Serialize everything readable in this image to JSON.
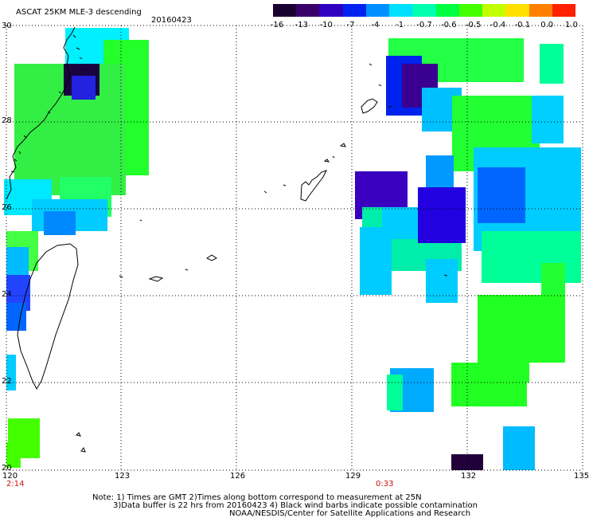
{
  "header": {
    "title": "ASCAT 25KM MLE-3 descending",
    "date": "20160423"
  },
  "colorbar": {
    "labels": [
      "-16",
      "-13",
      "-10",
      "-7",
      "-4",
      "-1",
      "-0.7",
      "-0.6",
      "-0.5",
      "-0.4",
      "-0.1",
      "0.0",
      "1.0"
    ],
    "colors": [
      "#1a0030",
      "#3a006a",
      "#3000c0",
      "#0022f0",
      "#0090ff",
      "#00e0ff",
      "#00ffb0",
      "#00ff40",
      "#44ff00",
      "#c0ff00",
      "#ffe000",
      "#ff8000",
      "#ff2000"
    ]
  },
  "axes": {
    "lon_labels": [
      "120",
      "123",
      "126",
      "129",
      "132",
      "135"
    ],
    "lat_labels": [
      "20",
      "22",
      "24",
      "26",
      "28",
      "30"
    ]
  },
  "times": {
    "left": "2:14",
    "right": "0:33"
  },
  "notes": {
    "line1": "Note: 1) Times are GMT 2)Times along bottom correspond to measurement at 25N",
    "line2": "3)Data buffer is 22 hrs from 20160423 4) Black wind barbs indicate possible contamination",
    "line3": "NOAA/NESDIS/Center for Satellite Applications and Research"
  }
}
